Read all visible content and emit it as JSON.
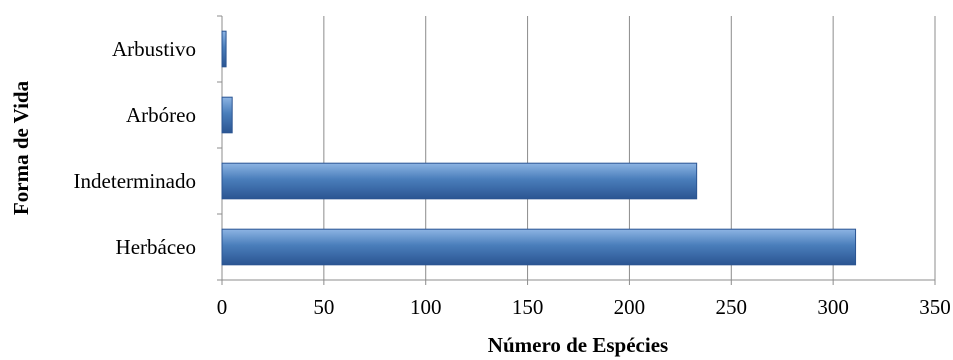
{
  "chart_data": {
    "type": "bar",
    "orientation": "horizontal",
    "categories": [
      "Arbustivo",
      "Arbóreo",
      "Indeterminado",
      "Herbáceo"
    ],
    "values": [
      2,
      5,
      233,
      311
    ],
    "xlabel": "Número de Espécies",
    "ylabel": "Forma de Vida",
    "xlim": [
      0,
      350
    ],
    "xticks": [
      0,
      50,
      100,
      150,
      200,
      250,
      300,
      350
    ],
    "grid": "vertical",
    "legend": "none",
    "bar_color": "#4a7ebb",
    "bar_color_light": "#8db4e3",
    "bar_color_dark": "#2b5592"
  }
}
